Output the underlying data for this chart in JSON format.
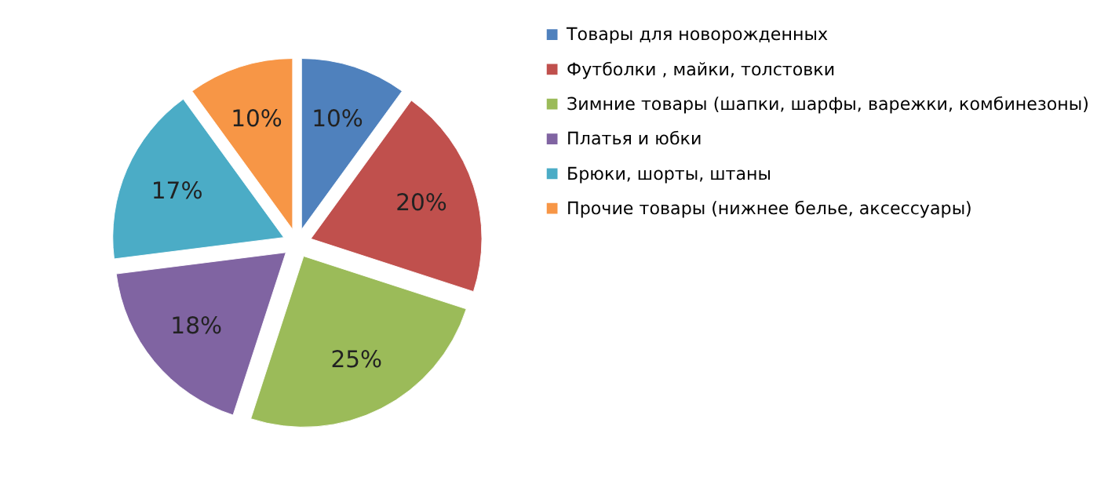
{
  "chart_data": {
    "type": "pie",
    "categories": [
      "Товары для новорожденных",
      "Футболки , майки, толстовки",
      "Зимние товары (шапки, шарфы, варежки, комбинезоны)",
      "Платья и юбки",
      "Брюки, шорты, штаны",
      "Прочие товары (нижнее белье, аксессуары)"
    ],
    "values": [
      10,
      20,
      25,
      18,
      17,
      10
    ],
    "colors": [
      "#4f81bd",
      "#c0504d",
      "#9bbb59",
      "#8064a2",
      "#4bacc6",
      "#f79646"
    ],
    "value_labels": [
      "10%",
      "20%",
      "25%",
      "18%",
      "17%",
      "10%"
    ],
    "legend": "right"
  }
}
